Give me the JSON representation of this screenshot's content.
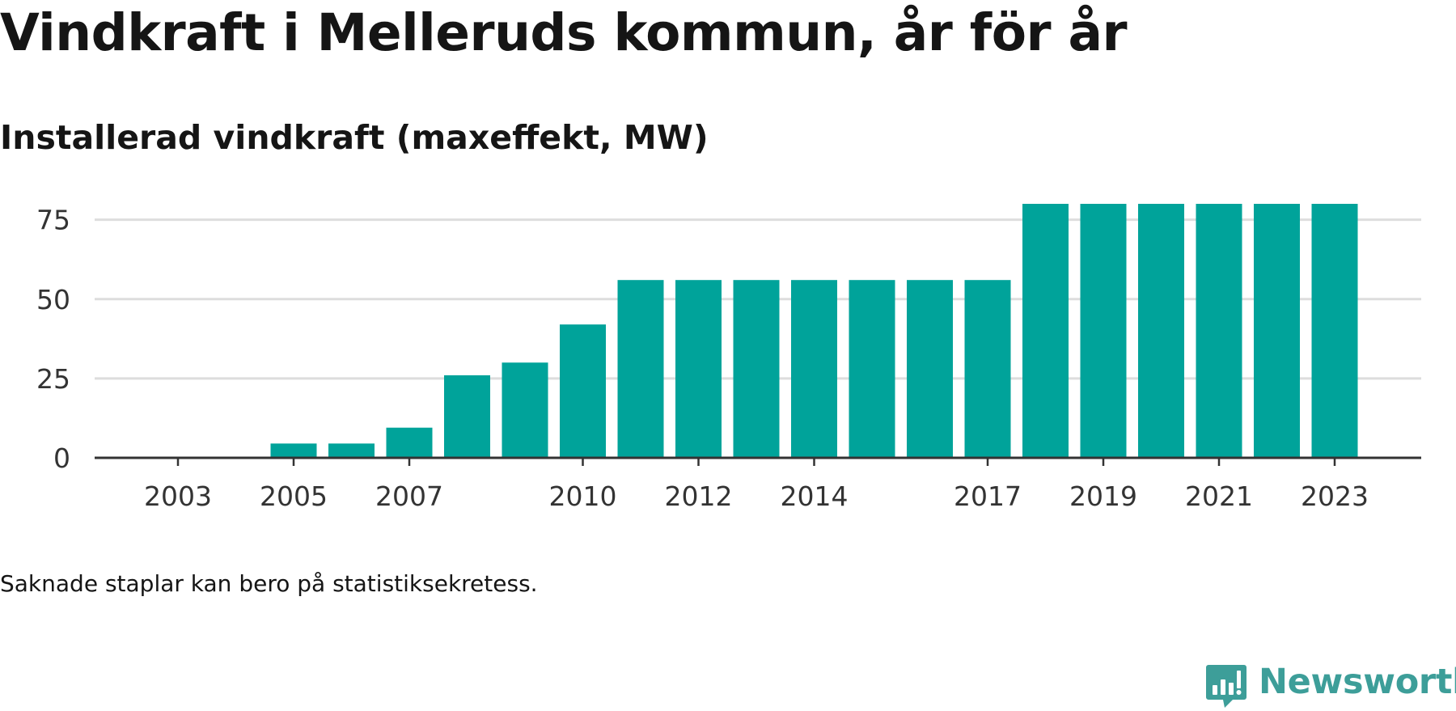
{
  "title": "Vindkraft i Melleruds kommun, år för år",
  "subtitle": "Installerad vindkraft (maxeffekt, MW)",
  "note": "Saknade staplar kan bero på statistiksekretess.",
  "brand": {
    "name": "Newsworthy",
    "icon": "newsworthy-logo-icon",
    "color": "#3d9e99"
  },
  "chart_data": {
    "type": "bar",
    "categories": [
      "2003",
      "2004",
      "2005",
      "2006",
      "2007",
      "2008",
      "2009",
      "2010",
      "2011",
      "2012",
      "2013",
      "2014",
      "2015",
      "2016",
      "2017",
      "2018",
      "2019",
      "2020",
      "2021",
      "2022",
      "2023"
    ],
    "values": [
      0,
      0,
      4.5,
      4.5,
      9.5,
      26,
      30,
      42,
      56,
      56,
      56,
      56,
      56,
      56,
      56,
      80,
      80,
      80,
      80,
      80,
      80
    ],
    "x_tick_labels": [
      "2003",
      "2005",
      "2007",
      "2010",
      "2012",
      "2014",
      "2017",
      "2019",
      "2021",
      "2023"
    ],
    "y_ticks": [
      0,
      25,
      50,
      75
    ],
    "ylim": [
      0,
      80
    ],
    "xlabel": "",
    "ylabel": "",
    "grid": true,
    "colors": {
      "bar": "#00a39a",
      "grid": "#dddddd",
      "axis": "#333333"
    }
  }
}
